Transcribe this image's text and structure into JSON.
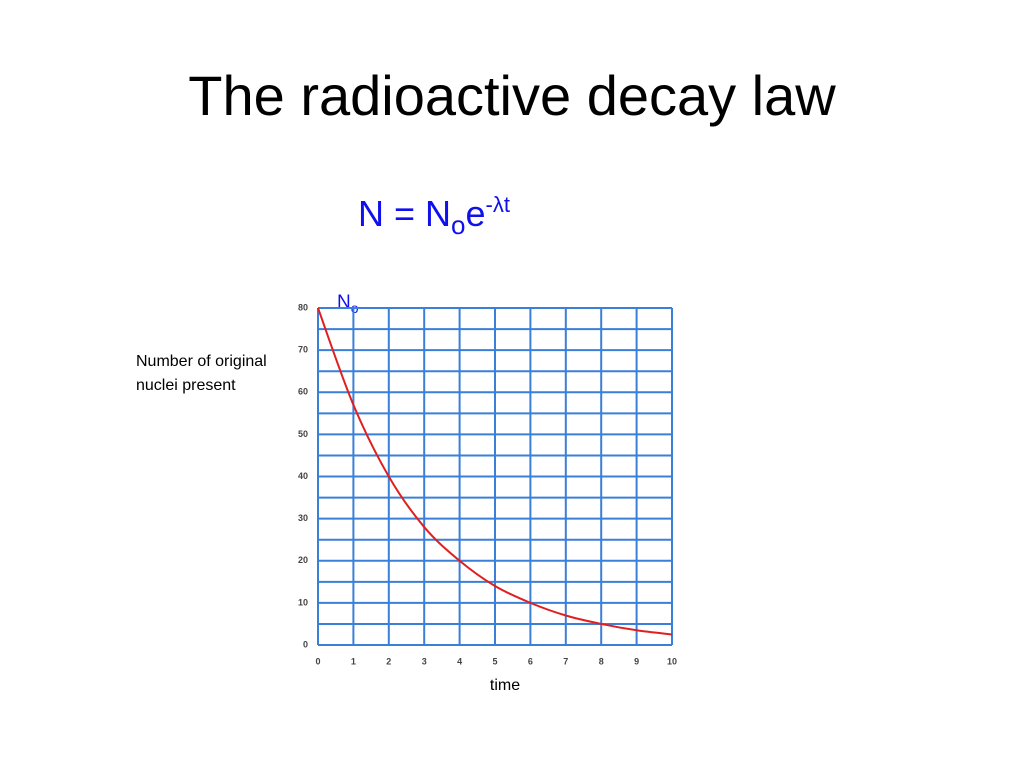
{
  "title": "The radioactive decay law",
  "formula": {
    "left": "N = N",
    "sub": "o",
    "base": "e",
    "sup": "-λt"
  },
  "chart_data": {
    "type": "line",
    "annotation": {
      "text": "N",
      "sub": "o"
    },
    "y_label": [
      "Number of original",
      "nuclei present"
    ],
    "x_label": "time",
    "x": [
      0,
      1,
      2,
      3,
      4,
      5,
      6,
      7,
      8,
      9,
      10
    ],
    "values": [
      80,
      57,
      40,
      28,
      20,
      14,
      10,
      7,
      5,
      3.5,
      2.5
    ],
    "color": "#e02020",
    "grid_color": "#3a7fd8",
    "xlim": [
      0,
      10
    ],
    "ylim": [
      0,
      80
    ],
    "xticks": [
      0,
      1,
      2,
      3,
      4,
      5,
      6,
      7,
      8,
      9,
      10
    ],
    "yticks": [
      0,
      10,
      20,
      30,
      40,
      50,
      60,
      70,
      80
    ],
    "grid": true,
    "minor_grid": true
  }
}
